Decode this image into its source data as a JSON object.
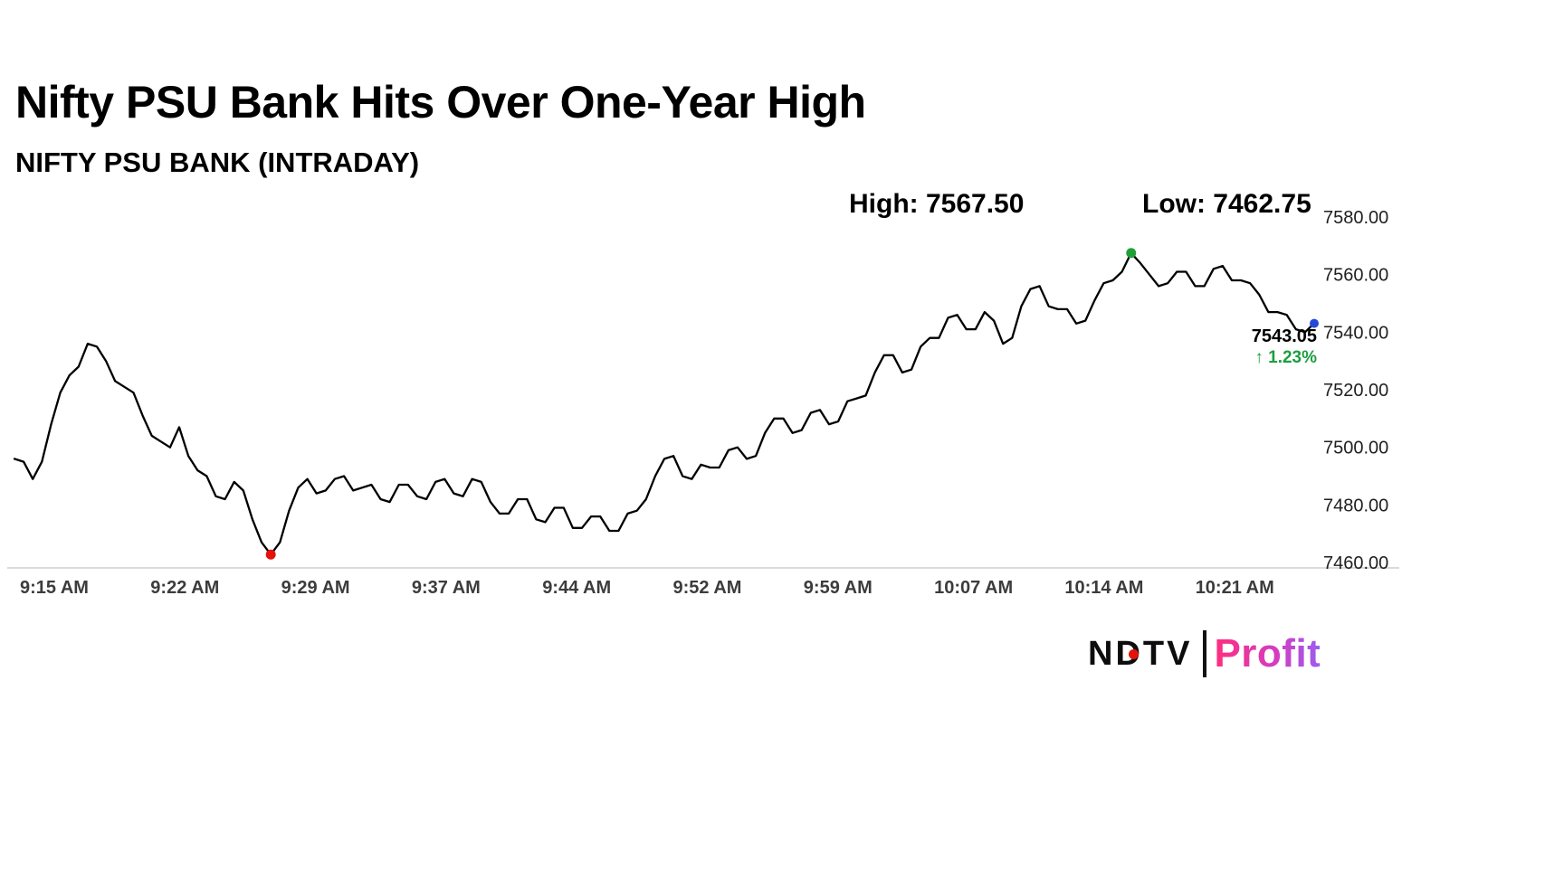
{
  "header": {
    "title": "Nifty PSU Bank Hits Over One-Year High",
    "subtitle": "NIFTY PSU BANK (INTRADAY)",
    "high_label": "High: 7567.50",
    "low_label": "Low: 7462.75"
  },
  "annotations": {
    "last_price": "7543.05",
    "change_arrow": "↑",
    "change_percent": "1.23%",
    "change_color": "#1b9e3e"
  },
  "chart_data": {
    "type": "line",
    "title": "NIFTY PSU BANK (INTRADAY)",
    "high": 7567.5,
    "low": 7462.75,
    "last": 7543.05,
    "change_percent_value": 1.23,
    "ylim": [
      7460,
      7580
    ],
    "grid": false,
    "legend": false,
    "line_color": "#000000",
    "axis_line_color": "#cfcfcf",
    "marker_colors": {
      "low": "#e3120b",
      "high": "#21a038",
      "last": "#2449d8"
    },
    "x_ticks": [
      "9:15 AM",
      "9:22 AM",
      "9:29 AM",
      "9:37 AM",
      "9:44 AM",
      "9:52 AM",
      "9:59 AM",
      "10:07 AM",
      "10:14 AM",
      "10:21 AM"
    ],
    "y_tick_labels": [
      "7580.00",
      "7560.00",
      "7540.00",
      "7520.00",
      "7500.00",
      "7480.00",
      "7460.00"
    ],
    "y_tick_values": [
      7580,
      7560,
      7540,
      7520,
      7500,
      7480,
      7460
    ],
    "sample_interval_minutes": 0.5,
    "x_start_label": "9:15 AM",
    "values": [
      7496,
      7495,
      7489,
      7495,
      7508,
      7519,
      7525,
      7528,
      7536,
      7535,
      7530,
      7523,
      7521,
      7519,
      7511,
      7504,
      7502,
      7500,
      7507,
      7497,
      7492,
      7490,
      7483,
      7482,
      7488,
      7485,
      7475,
      7467,
      7462.75,
      7467,
      7478,
      7486,
      7489,
      7484,
      7485,
      7489,
      7490,
      7485,
      7486,
      7487,
      7482,
      7481,
      7487,
      7487,
      7483,
      7482,
      7488,
      7489,
      7484,
      7483,
      7489,
      7488,
      7481,
      7477,
      7477,
      7482,
      7482,
      7475,
      7474,
      7479,
      7479,
      7472,
      7472,
      7476,
      7476,
      7471,
      7471,
      7477,
      7478,
      7482,
      7490,
      7496,
      7497,
      7490,
      7489,
      7494,
      7493,
      7493,
      7499,
      7500,
      7496,
      7497,
      7505,
      7510,
      7510,
      7505,
      7506,
      7512,
      7513,
      7508,
      7509,
      7516,
      7517,
      7518,
      7526,
      7532,
      7532,
      7526,
      7527,
      7535,
      7538,
      7538,
      7545,
      7546,
      7541,
      7541,
      7547,
      7544,
      7536,
      7538,
      7549,
      7555,
      7556,
      7549,
      7548,
      7548,
      7543,
      7544,
      7551,
      7557,
      7558,
      7561,
      7567.5,
      7564,
      7560,
      7556,
      7557,
      7561,
      7561,
      7556,
      7556,
      7562,
      7563,
      7558,
      7558,
      7557,
      7553,
      7547,
      7547,
      7546,
      7541,
      7540,
      7543.05
    ]
  },
  "logo": {
    "ndtv": "NDTV",
    "separator_color": "#111111",
    "dot_color": "#e3120b",
    "profit": "Profit",
    "profit_gradient": [
      "#ff2e7e",
      "#9d5cf0"
    ]
  }
}
